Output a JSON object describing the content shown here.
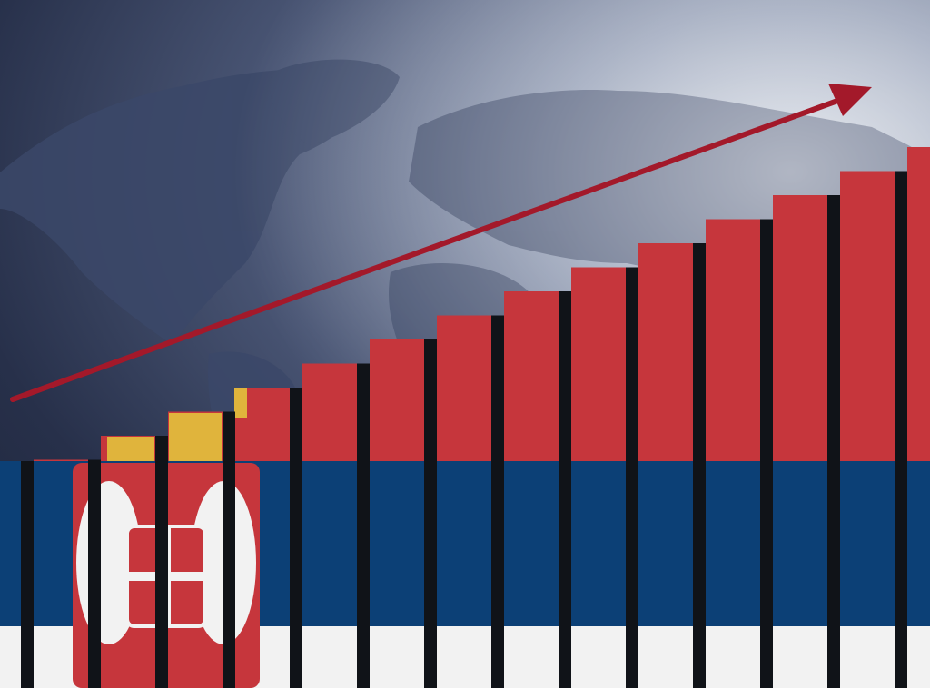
{
  "colors": {
    "flag_red": "#c6363c",
    "flag_blue": "#0c4076",
    "flag_white": "#f2f2f2",
    "arrow": "#a3192a",
    "gap": "#101318",
    "map_land": "#3d4a6e"
  },
  "icons": {
    "coat_of_arms": "serbian-coat-of-arms-icon",
    "arrow": "trend-up-arrow-icon"
  }
}
